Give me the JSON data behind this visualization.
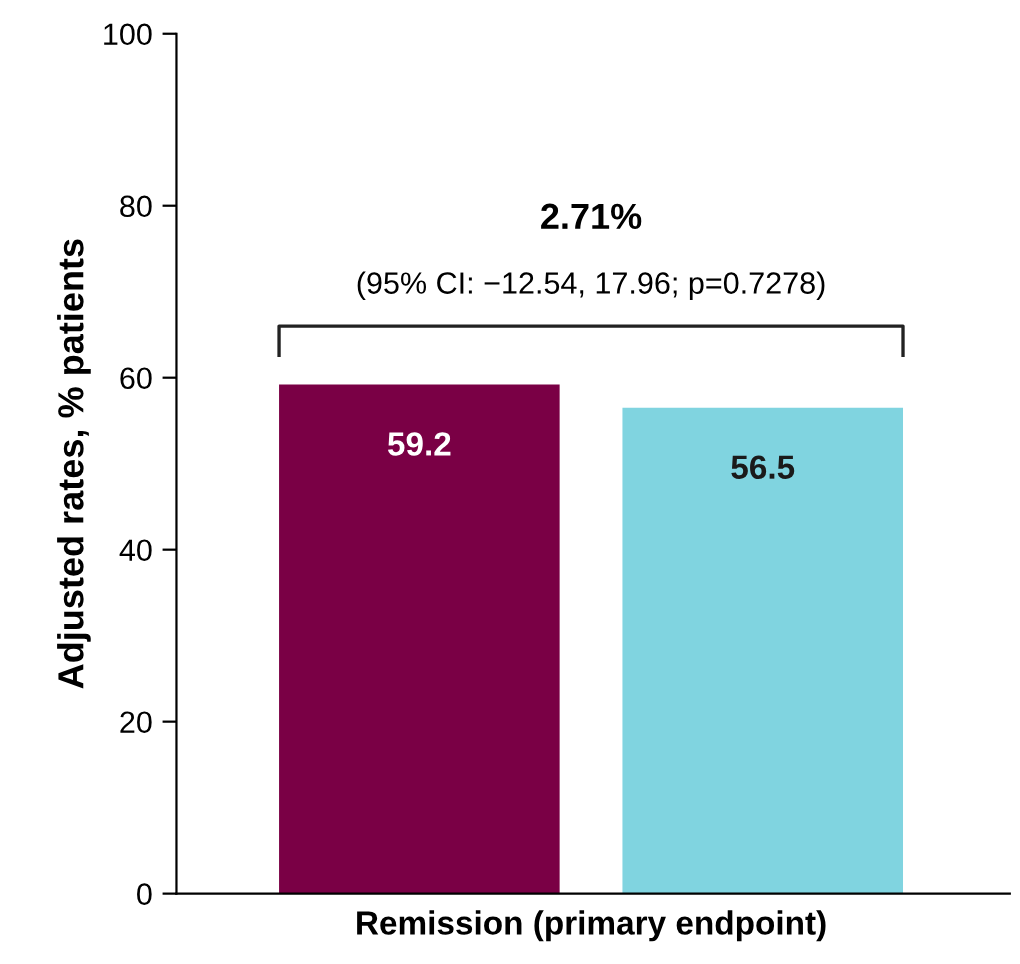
{
  "chart_data": {
    "type": "bar",
    "ylabel": "Adjusted rates, % patients",
    "categories": [
      "Remission (primary endpoint)"
    ],
    "series": [
      {
        "color": "#7a0045",
        "values": [
          59.2
        ]
      },
      {
        "color": "#80d4e0",
        "values": [
          56.5
        ]
      }
    ],
    "ylim": [
      0,
      100
    ],
    "yticks": [
      0,
      20,
      40,
      60,
      80,
      100
    ],
    "data_labels": true,
    "grid": false,
    "legend": false,
    "annotations": [
      "2.71%",
      "(95% CI: −12.54, 17.96; p=0.7278)"
    ]
  }
}
